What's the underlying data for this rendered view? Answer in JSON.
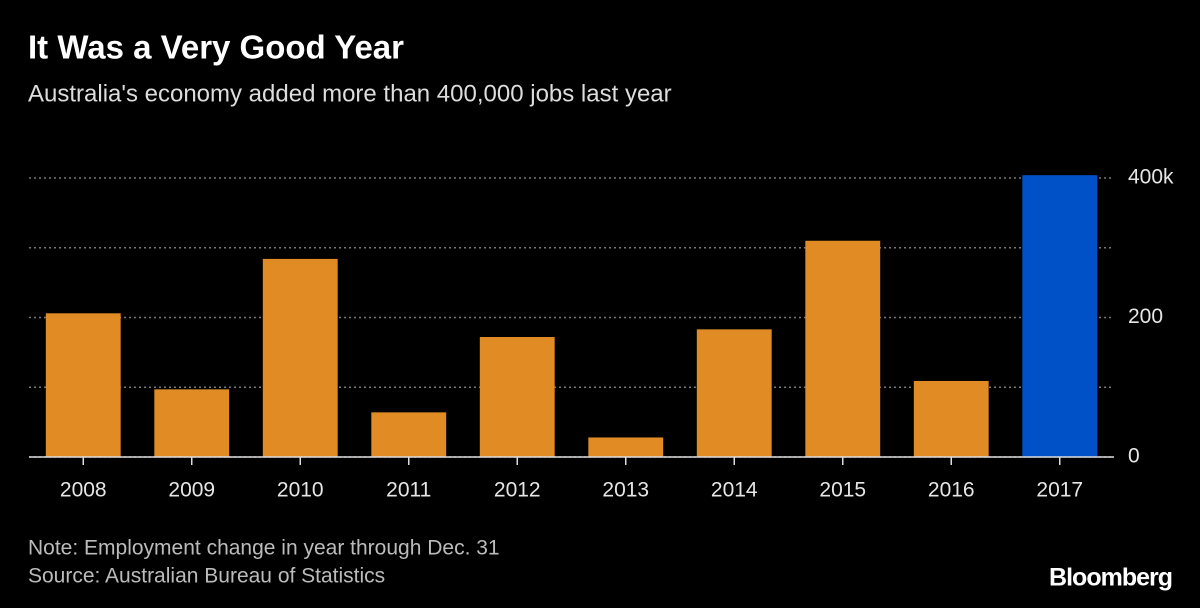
{
  "chart_data": {
    "type": "bar",
    "title": "It Was a Very Good Year",
    "subtitle": "Australia's economy added more than 400,000 jobs last year",
    "categories": [
      "2008",
      "2009",
      "2010",
      "2011",
      "2012",
      "2013",
      "2014",
      "2015",
      "2016",
      "2017"
    ],
    "values": [
      206,
      97,
      284,
      64,
      172,
      28,
      183,
      310,
      109,
      404
    ],
    "colors": [
      "#e08b24",
      "#e08b24",
      "#e08b24",
      "#e08b24",
      "#e08b24",
      "#e08b24",
      "#e08b24",
      "#e08b24",
      "#e08b24",
      "#0050c8"
    ],
    "ylim": [
      0,
      410
    ],
    "yticks": [
      0,
      200,
      {
        "value": 400,
        "label": "400k"
      }
    ],
    "minor_yticks": [
      100,
      300
    ],
    "grid": true,
    "y_axis_side": "right",
    "note": "Note: Employment change in year through Dec. 31",
    "source": "Source: Australian Bureau of Statistics",
    "brand": "Bloomberg"
  }
}
